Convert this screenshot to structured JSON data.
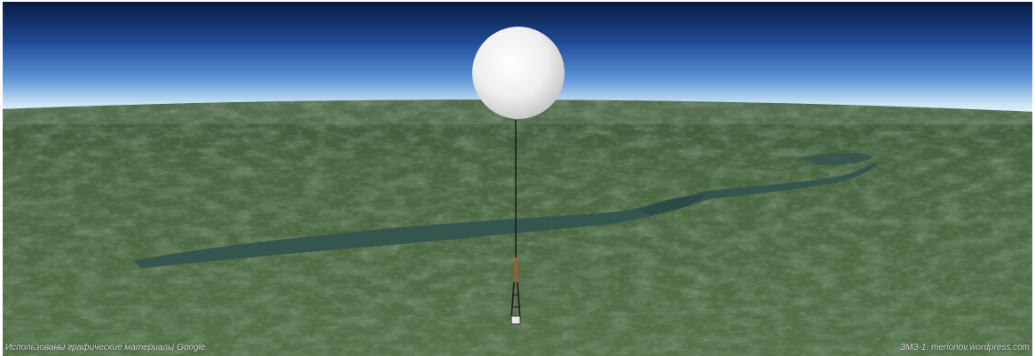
{
  "scene": {
    "subject": "balloon-icon",
    "colors": {
      "space": "#0b1f4a",
      "sky_mid": "#3b73c8",
      "horizon_glow": "#eaf4fb",
      "terrain": "#4a6540",
      "terrain_dark": "#2f4a2e",
      "reservoir": "#33524f",
      "balloon": "#f2f2f2",
      "tether": "#1a1a1a",
      "mast": "#b0572a"
    }
  },
  "credits": {
    "left": "Использованы графические материалы Google",
    "right": "ЗМЗ-1. merionov.wordpress.com"
  }
}
